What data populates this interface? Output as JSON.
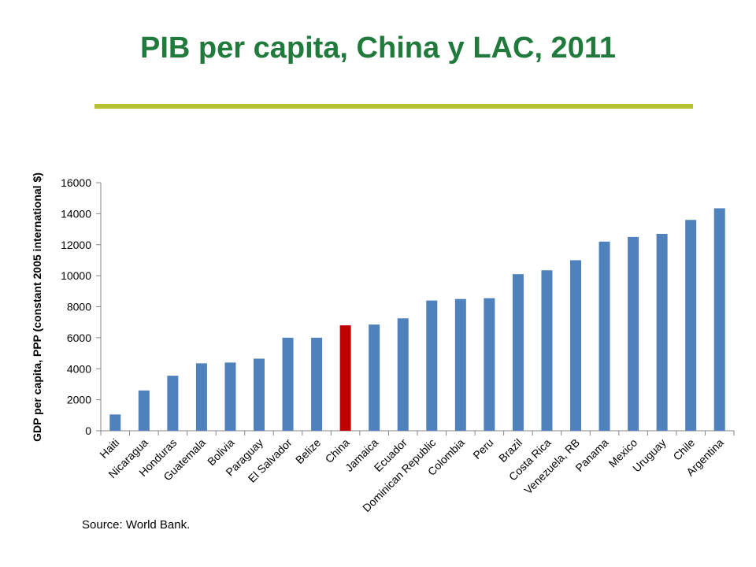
{
  "slide": {
    "title": "PIB per capita, China y LAC, 2011",
    "rule_color": "#b5c234",
    "title_color": "#1f7a3c",
    "source": "Source: World Bank."
  },
  "chart_data": {
    "type": "bar",
    "ylabel": "GDP per capita, PPP (constant 2005 international $)",
    "xlabel": "",
    "ylim": [
      0,
      16000
    ],
    "yticks": [
      0,
      2000,
      4000,
      6000,
      8000,
      10000,
      12000,
      14000,
      16000
    ],
    "grid": false,
    "legend": "none",
    "bar_color": "#4f81bd",
    "highlight_color": "#c00000",
    "highlight_category": "China",
    "categories": [
      "Haiti",
      "Nicaragua",
      "Honduras",
      "Guatemala",
      "Bolivia",
      "Paraguay",
      "El Salvador",
      "Belize",
      "China",
      "Jamaica",
      "Ecuador",
      "Dominican Republic",
      "Colombia",
      "Peru",
      "Brazil",
      "Costa Rica",
      "Venezuela, RB",
      "Panama",
      "Mexico",
      "Uruguay",
      "Chile",
      "Argentina"
    ],
    "values": [
      1050,
      2600,
      3550,
      4350,
      4400,
      4650,
      6000,
      6000,
      6800,
      6850,
      7250,
      8400,
      8500,
      8550,
      10100,
      10350,
      11000,
      12200,
      12500,
      12700,
      13600,
      14350
    ]
  }
}
